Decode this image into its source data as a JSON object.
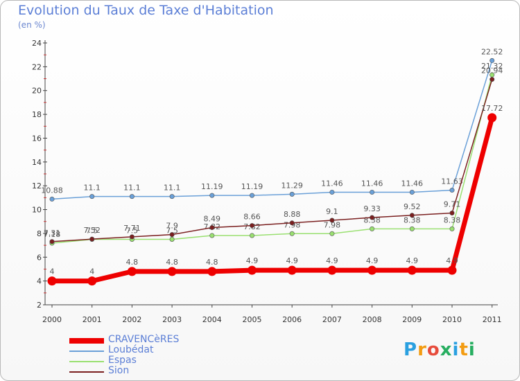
{
  "title": "Evolution du Taux de Taxe d'Habitation",
  "unit_label": "(en %)",
  "logo": {
    "text": "Proxiti",
    "letters": [
      {
        "ch": "P",
        "color": "#2aa0e0"
      },
      {
        "ch": "r",
        "color": "#f39c12"
      },
      {
        "ch": "o",
        "color": "#e74c3c"
      },
      {
        "ch": "x",
        "color": "#27ae60"
      },
      {
        "ch": "i",
        "color": "#2aa0e0"
      },
      {
        "ch": "t",
        "color": "#f39c12"
      },
      {
        "ch": "i",
        "color": "#27ae60"
      }
    ]
  },
  "chart_data": {
    "type": "line",
    "title": "Evolution du Taux de Taxe d'Habitation",
    "ylabel": "(en %)",
    "xlabel": "",
    "ylim": [
      2,
      24
    ],
    "yticks": [
      2,
      4,
      6,
      8,
      10,
      12,
      14,
      16,
      18,
      20,
      22,
      24
    ],
    "grid": false,
    "legend_position": "bottom-left",
    "x": [
      "2000",
      "2001",
      "2002",
      "2003",
      "2004",
      "2005",
      "2006",
      "2007",
      "2008",
      "2009",
      "2010",
      "2011"
    ],
    "series": [
      {
        "name": "CRAVENCèRES",
        "color": "#ee0000",
        "emphasis": true,
        "values": [
          4,
          4,
          4.8,
          4.8,
          4.8,
          4.9,
          4.9,
          4.9,
          4.9,
          4.9,
          4.9,
          17.72
        ],
        "labels": [
          "4",
          "4",
          "4.8",
          "4.8",
          "4.8",
          "4.9",
          "4.9",
          "4.9",
          "4.9",
          "4.9",
          "4.9",
          "17.72"
        ]
      },
      {
        "name": "Loubédat",
        "color": "#6aa0d8",
        "emphasis": false,
        "values": [
          10.88,
          11.1,
          11.1,
          11.1,
          11.19,
          11.19,
          11.29,
          11.46,
          11.46,
          11.46,
          11.63,
          22.52
        ],
        "labels": [
          "10.88",
          "11.1",
          "11.1",
          "11.1",
          "11.19",
          "11.19",
          "11.29",
          "11.46",
          "11.46",
          "11.46",
          "11.63",
          "22.52"
        ]
      },
      {
        "name": "Espas",
        "color": "#99e070",
        "emphasis": false,
        "values": [
          7.18,
          7.5,
          7.5,
          7.5,
          7.82,
          7.82,
          7.98,
          7.98,
          8.38,
          8.38,
          8.38,
          21.32
        ],
        "labels": [
          "7.18",
          "7.5",
          "7.5",
          "7.5",
          "7.82",
          "7.82",
          "7.98",
          "7.98",
          "8.38",
          "8.38",
          "8.38",
          "21.32"
        ]
      },
      {
        "name": "Sion",
        "color": "#7a1f1f",
        "emphasis": false,
        "values": [
          7.31,
          7.52,
          7.71,
          7.9,
          8.49,
          8.66,
          8.88,
          9.1,
          9.33,
          9.52,
          9.71,
          20.94
        ],
        "labels": [
          "7.31",
          "7.52",
          "7.71",
          "7.9",
          "8.49",
          "8.66",
          "8.88",
          "9.1",
          "9.33",
          "9.52",
          "9.71",
          "20.94"
        ]
      }
    ]
  }
}
